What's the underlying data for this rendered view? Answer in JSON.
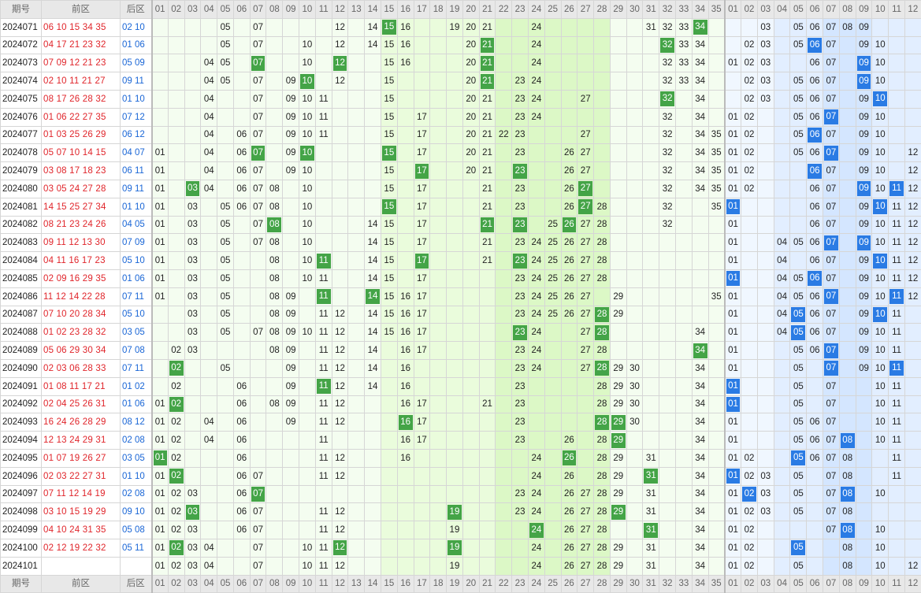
{
  "header": {
    "period": "期号",
    "front": "前区",
    "back": "后区"
  },
  "front_cols": [
    "01",
    "02",
    "03",
    "04",
    "05",
    "06",
    "07",
    "08",
    "09",
    "10",
    "11",
    "12",
    "13",
    "14",
    "15",
    "16",
    "17",
    "18",
    "19",
    "20",
    "21",
    "22",
    "23",
    "24",
    "25",
    "26",
    "27",
    "28",
    "29",
    "30",
    "31",
    "32",
    "33",
    "34",
    "35"
  ],
  "back_cols": [
    "01",
    "02",
    "03",
    "04",
    "05",
    "06",
    "07",
    "08",
    "09",
    "10",
    "11",
    "12"
  ],
  "rows": [
    {
      "period": "2024071",
      "front": "06 10 15 34 35",
      "back": "02 10",
      "fv": [
        "05",
        "07",
        "12",
        "14",
        "15",
        "16",
        "19",
        "20",
        "21",
        "24",
        "31",
        "32",
        "33",
        "34"
      ],
      "fh": [
        "15",
        "34"
      ],
      "bv": [
        "03",
        "05",
        "06",
        "07",
        "08",
        "09"
      ],
      "bh": []
    },
    {
      "period": "2024072",
      "front": "04 17 21 23 32",
      "back": "01 06",
      "fv": [
        "05",
        "07",
        "10",
        "12",
        "14",
        "15",
        "16",
        "20",
        "21",
        "24",
        "32",
        "33",
        "34"
      ],
      "fh": [
        "21",
        "32"
      ],
      "bv": [
        "02",
        "03",
        "05",
        "06",
        "07",
        "09",
        "10"
      ],
      "bh": [
        "06"
      ]
    },
    {
      "period": "2024073",
      "front": "07 09 12 21 23",
      "back": "05 09",
      "fv": [
        "04",
        "05",
        "07",
        "10",
        "12",
        "15",
        "16",
        "20",
        "21",
        "24",
        "32",
        "33",
        "34"
      ],
      "fh": [
        "07",
        "12",
        "21"
      ],
      "bv": [
        "01",
        "02",
        "03",
        "06",
        "07",
        "09",
        "10"
      ],
      "bh": [
        "09"
      ]
    },
    {
      "period": "2024074",
      "front": "02 10 11 21 27",
      "back": "09 11",
      "fv": [
        "04",
        "05",
        "07",
        "09",
        "10",
        "12",
        "15",
        "20",
        "21",
        "23",
        "24",
        "32",
        "33",
        "34"
      ],
      "fh": [
        "10",
        "21"
      ],
      "bv": [
        "02",
        "03",
        "05",
        "06",
        "07",
        "09",
        "10"
      ],
      "bh": [
        "09"
      ]
    },
    {
      "period": "2024075",
      "front": "08 17 26 28 32",
      "back": "01 10",
      "fv": [
        "04",
        "07",
        "09",
        "10",
        "11",
        "15",
        "20",
        "21",
        "23",
        "24",
        "27",
        "32",
        "34"
      ],
      "fh": [
        "32"
      ],
      "bv": [
        "02",
        "03",
        "05",
        "06",
        "07",
        "09",
        "10"
      ],
      "bh": [
        "10"
      ]
    },
    {
      "period": "2024076",
      "front": "01 06 22 27 35",
      "back": "07 12",
      "fv": [
        "04",
        "07",
        "09",
        "10",
        "11",
        "15",
        "17",
        "20",
        "21",
        "23",
        "24",
        "32",
        "34"
      ],
      "fh": [],
      "bv": [
        "01",
        "02",
        "05",
        "06",
        "07",
        "09",
        "10"
      ],
      "bh": [
        "07"
      ]
    },
    {
      "period": "2024077",
      "front": "01 03 25 26 29",
      "back": "06 12",
      "fv": [
        "04",
        "06",
        "07",
        "09",
        "10",
        "11",
        "15",
        "17",
        "20",
        "21",
        "22",
        "23",
        "27",
        "32",
        "34",
        "35"
      ],
      "fh": [],
      "bv": [
        "01",
        "02",
        "05",
        "06",
        "07",
        "09",
        "10"
      ],
      "bh": [
        "06"
      ]
    },
    {
      "period": "2024078",
      "front": "05 07 10 14 15",
      "back": "04 07",
      "fv": [
        "01",
        "04",
        "06",
        "07",
        "09",
        "10",
        "15",
        "17",
        "20",
        "21",
        "23",
        "26",
        "27",
        "32",
        "34",
        "35"
      ],
      "fh": [
        "07",
        "10",
        "15"
      ],
      "bv": [
        "01",
        "02",
        "05",
        "06",
        "07",
        "09",
        "10",
        "12"
      ],
      "bh": [
        "07"
      ]
    },
    {
      "period": "2024079",
      "front": "03 08 17 18 23",
      "back": "06 11",
      "fv": [
        "01",
        "04",
        "06",
        "07",
        "09",
        "10",
        "15",
        "17",
        "20",
        "21",
        "23",
        "26",
        "27",
        "32",
        "34",
        "35"
      ],
      "fh": [
        "17",
        "23"
      ],
      "bv": [
        "01",
        "02",
        "06",
        "07",
        "09",
        "10",
        "12"
      ],
      "bh": [
        "06"
      ]
    },
    {
      "period": "2024080",
      "front": "03 05 24 27 28",
      "back": "09 11",
      "fv": [
        "01",
        "03",
        "04",
        "06",
        "07",
        "08",
        "10",
        "15",
        "17",
        "21",
        "23",
        "26",
        "27",
        "32",
        "34",
        "35"
      ],
      "fh": [
        "03",
        "27"
      ],
      "bv": [
        "01",
        "02",
        "06",
        "07",
        "09",
        "10",
        "11",
        "12"
      ],
      "bh": [
        "09",
        "11"
      ]
    },
    {
      "period": "2024081",
      "front": "14 15 25 27 34",
      "back": "01 10",
      "fv": [
        "01",
        "03",
        "05",
        "06",
        "07",
        "08",
        "10",
        "15",
        "17",
        "21",
        "23",
        "26",
        "27",
        "28",
        "32",
        "35"
      ],
      "fh": [
        "15",
        "27"
      ],
      "bv": [
        "01",
        "06",
        "07",
        "09",
        "10",
        "11",
        "12"
      ],
      "bh": [
        "01",
        "10"
      ]
    },
    {
      "period": "2024082",
      "front": "08 21 23 24 26",
      "back": "04 05",
      "fv": [
        "01",
        "03",
        "05",
        "07",
        "08",
        "10",
        "14",
        "15",
        "17",
        "21",
        "23",
        "25",
        "26",
        "27",
        "28",
        "32"
      ],
      "fh": [
        "08",
        "21",
        "23",
        "26"
      ],
      "bv": [
        "01",
        "06",
        "07",
        "09",
        "10",
        "11",
        "12"
      ],
      "bh": []
    },
    {
      "period": "2024083",
      "front": "09 11 12 13 30",
      "back": "07 09",
      "fv": [
        "01",
        "03",
        "05",
        "07",
        "08",
        "10",
        "14",
        "15",
        "17",
        "21",
        "23",
        "24",
        "25",
        "26",
        "27",
        "28"
      ],
      "fh": [],
      "bv": [
        "01",
        "04",
        "05",
        "06",
        "07",
        "09",
        "10",
        "11",
        "12"
      ],
      "bh": [
        "07",
        "09"
      ]
    },
    {
      "period": "2024084",
      "front": "04 11 16 17 23",
      "back": "05 10",
      "fv": [
        "01",
        "03",
        "05",
        "08",
        "10",
        "11",
        "14",
        "15",
        "17",
        "21",
        "23",
        "24",
        "25",
        "26",
        "27",
        "28"
      ],
      "fh": [
        "11",
        "17",
        "23"
      ],
      "bv": [
        "01",
        "04",
        "06",
        "07",
        "09",
        "10",
        "11",
        "12"
      ],
      "bh": [
        "10"
      ]
    },
    {
      "period": "2024085",
      "front": "02 09 16 29 35",
      "back": "01 06",
      "fv": [
        "01",
        "03",
        "05",
        "08",
        "10",
        "11",
        "14",
        "15",
        "17",
        "23",
        "24",
        "25",
        "26",
        "27",
        "28"
      ],
      "fh": [],
      "bv": [
        "01",
        "04",
        "05",
        "06",
        "07",
        "09",
        "10",
        "11",
        "12"
      ],
      "bh": [
        "01",
        "06"
      ]
    },
    {
      "period": "2024086",
      "front": "11 12 14 22 28",
      "back": "07 11",
      "fv": [
        "01",
        "03",
        "05",
        "08",
        "09",
        "11",
        "14",
        "15",
        "16",
        "17",
        "23",
        "24",
        "25",
        "26",
        "27",
        "29",
        "35"
      ],
      "fh": [
        "11",
        "14"
      ],
      "bv": [
        "01",
        "04",
        "05",
        "06",
        "07",
        "09",
        "10",
        "11",
        "12"
      ],
      "bh": [
        "07",
        "11"
      ]
    },
    {
      "period": "2024087",
      "front": "07 10 20 28 34",
      "back": "05 10",
      "fv": [
        "03",
        "05",
        "08",
        "09",
        "11",
        "12",
        "14",
        "15",
        "16",
        "17",
        "23",
        "24",
        "25",
        "26",
        "27",
        "28",
        "29"
      ],
      "fh": [
        "28"
      ],
      "bv": [
        "01",
        "04",
        "05",
        "06",
        "07",
        "09",
        "10",
        "11"
      ],
      "bh": [
        "05",
        "10"
      ]
    },
    {
      "period": "2024088",
      "front": "01 02 23 28 32",
      "back": "03 05",
      "fv": [
        "03",
        "05",
        "07",
        "08",
        "09",
        "10",
        "11",
        "12",
        "14",
        "15",
        "16",
        "17",
        "23",
        "24",
        "27",
        "28",
        "34"
      ],
      "fh": [
        "23",
        "28"
      ],
      "bv": [
        "01",
        "04",
        "05",
        "06",
        "07",
        "09",
        "10",
        "11"
      ],
      "bh": [
        "05"
      ]
    },
    {
      "period": "2024089",
      "front": "05 06 29 30 34",
      "back": "07 08",
      "fv": [
        "02",
        "03",
        "08",
        "09",
        "11",
        "12",
        "14",
        "16",
        "17",
        "23",
        "24",
        "27",
        "28",
        "34"
      ],
      "fh": [
        "34"
      ],
      "bv": [
        "01",
        "05",
        "06",
        "07",
        "09",
        "10",
        "11"
      ],
      "bh": [
        "07"
      ]
    },
    {
      "period": "2024090",
      "front": "02 03 06 28 33",
      "back": "07 11",
      "fv": [
        "02",
        "05",
        "09",
        "11",
        "12",
        "14",
        "16",
        "23",
        "24",
        "27",
        "28",
        "29",
        "30",
        "34"
      ],
      "fh": [
        "02",
        "28"
      ],
      "bv": [
        "01",
        "05",
        "07",
        "09",
        "10",
        "11"
      ],
      "bh": [
        "07",
        "11"
      ]
    },
    {
      "period": "2024091",
      "front": "01 08 11 17 21",
      "back": "01 02",
      "fv": [
        "02",
        "06",
        "09",
        "11",
        "12",
        "14",
        "16",
        "23",
        "28",
        "29",
        "30",
        "34"
      ],
      "fh": [
        "11"
      ],
      "bv": [
        "01",
        "05",
        "07",
        "10",
        "11"
      ],
      "bh": [
        "01"
      ]
    },
    {
      "period": "2024092",
      "front": "02 04 25 26 31",
      "back": "01 06",
      "fv": [
        "01",
        "02",
        "06",
        "08",
        "09",
        "11",
        "12",
        "16",
        "17",
        "21",
        "23",
        "28",
        "29",
        "30",
        "34"
      ],
      "fh": [
        "02"
      ],
      "bv": [
        "01",
        "05",
        "07",
        "10",
        "11"
      ],
      "bh": [
        "01"
      ]
    },
    {
      "period": "2024093",
      "front": "16 24 26 28 29",
      "back": "08 12",
      "fv": [
        "01",
        "02",
        "04",
        "06",
        "09",
        "11",
        "12",
        "16",
        "17",
        "23",
        "28",
        "29",
        "30",
        "34"
      ],
      "fh": [
        "16",
        "28",
        "29"
      ],
      "bv": [
        "01",
        "05",
        "06",
        "07",
        "10",
        "11"
      ],
      "bh": []
    },
    {
      "period": "2024094",
      "front": "12 13 24 29 31",
      "back": "02 08",
      "fv": [
        "01",
        "02",
        "04",
        "06",
        "11",
        "16",
        "17",
        "23",
        "26",
        "28",
        "29",
        "34"
      ],
      "fh": [
        "29"
      ],
      "bv": [
        "01",
        "05",
        "06",
        "07",
        "08",
        "10",
        "11"
      ],
      "bh": [
        "08"
      ]
    },
    {
      "period": "2024095",
      "front": "01 07 19 26 27",
      "back": "03 05",
      "fv": [
        "01",
        "02",
        "06",
        "11",
        "12",
        "16",
        "24",
        "26",
        "28",
        "29",
        "31",
        "34"
      ],
      "fh": [
        "01",
        "26"
      ],
      "bv": [
        "01",
        "02",
        "05",
        "06",
        "07",
        "08",
        "11"
      ],
      "bh": [
        "05"
      ]
    },
    {
      "period": "2024096",
      "front": "02 03 22 27 31",
      "back": "01 10",
      "fv": [
        "01",
        "02",
        "06",
        "07",
        "11",
        "12",
        "24",
        "26",
        "28",
        "29",
        "31",
        "34"
      ],
      "fh": [
        "02",
        "31"
      ],
      "bv": [
        "01",
        "02",
        "03",
        "05",
        "07",
        "08",
        "11"
      ],
      "bh": [
        "01"
      ]
    },
    {
      "period": "2024097",
      "front": "07 11 12 14 19",
      "back": "02 08",
      "fv": [
        "01",
        "02",
        "03",
        "06",
        "07",
        "23",
        "24",
        "26",
        "27",
        "28",
        "29",
        "31",
        "34"
      ],
      "fh": [
        "07"
      ],
      "bv": [
        "01",
        "02",
        "03",
        "05",
        "07",
        "08",
        "10"
      ],
      "bh": [
        "02",
        "08"
      ]
    },
    {
      "period": "2024098",
      "front": "03 10 15 19 29",
      "back": "09 10",
      "fv": [
        "01",
        "02",
        "03",
        "06",
        "07",
        "11",
        "12",
        "19",
        "23",
        "24",
        "26",
        "27",
        "28",
        "29",
        "31",
        "34"
      ],
      "fh": [
        "03",
        "19",
        "29"
      ],
      "bv": [
        "01",
        "02",
        "03",
        "05",
        "07",
        "08"
      ],
      "bh": []
    },
    {
      "period": "2024099",
      "front": "04 10 24 31 35",
      "back": "05 08",
      "fv": [
        "01",
        "02",
        "03",
        "06",
        "07",
        "11",
        "12",
        "19",
        "24",
        "26",
        "27",
        "28",
        "31",
        "34"
      ],
      "fh": [
        "24",
        "31"
      ],
      "bv": [
        "01",
        "02",
        "07",
        "08",
        "10"
      ],
      "bh": [
        "08"
      ]
    },
    {
      "period": "2024100",
      "front": "02 12 19 22 32",
      "back": "05 11",
      "fv": [
        "01",
        "02",
        "03",
        "04",
        "07",
        "10",
        "11",
        "12",
        "19",
        "24",
        "26",
        "27",
        "28",
        "29",
        "31",
        "34"
      ],
      "fh": [
        "02",
        "12",
        "19"
      ],
      "bv": [
        "01",
        "02",
        "05",
        "08",
        "10"
      ],
      "bh": [
        "05"
      ]
    },
    {
      "period": "2024101",
      "front": "",
      "back": "",
      "fv": [
        "01",
        "02",
        "03",
        "04",
        "07",
        "10",
        "11",
        "12",
        "19",
        "24",
        "26",
        "27",
        "28",
        "29",
        "31",
        "34"
      ],
      "fh": [],
      "bv": [
        "01",
        "02",
        "05",
        "08",
        "10",
        "12"
      ],
      "bh": []
    }
  ],
  "colors": {
    "front_hit": "#44a447",
    "back_hit": "#2a7be4",
    "front_red": "#e0242a",
    "back_blue": "#1a66d6"
  }
}
